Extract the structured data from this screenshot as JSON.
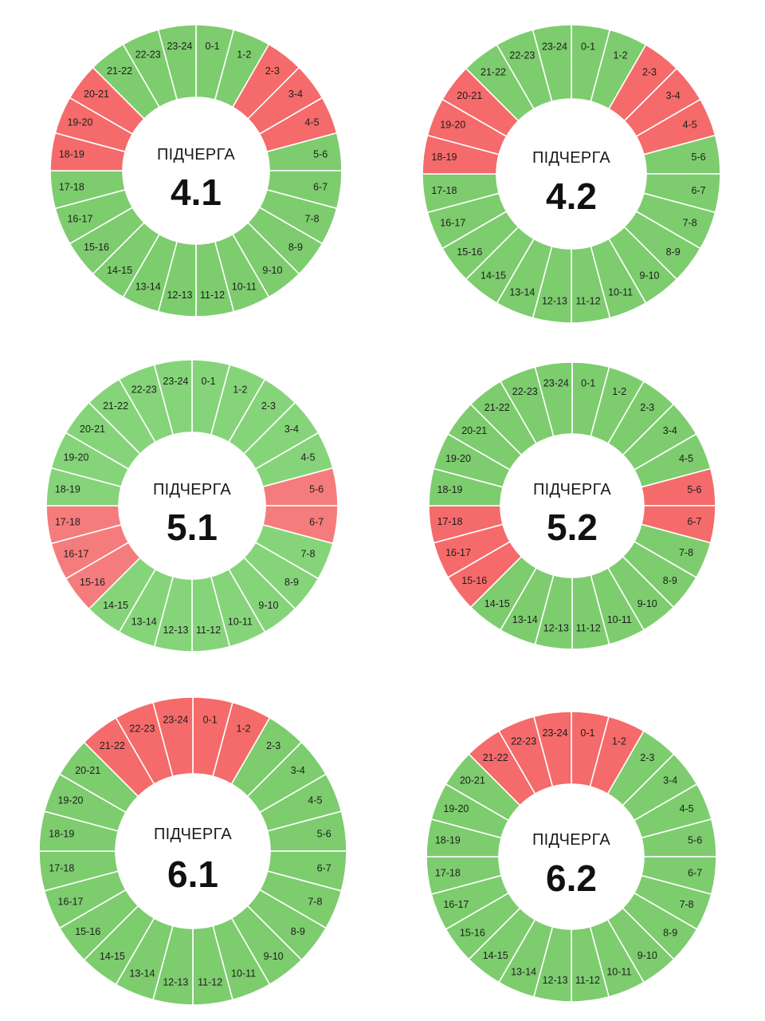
{
  "colors": {
    "on": "#7dcc6e",
    "on_light": "#86d47a",
    "off": "#f56a6a",
    "off_light": "#f57c7c",
    "separator": "#ffffff",
    "hole": "#ffffff"
  },
  "chart_data": [
    {
      "type": "pie",
      "caption": "ПІДЧЕРГА",
      "number": "4.1",
      "style": "normal",
      "categories": [
        "0-1",
        "1-2",
        "2-3",
        "3-4",
        "4-5",
        "5-6",
        "6-7",
        "7-8",
        "8-9",
        "9-10",
        "10-11",
        "11-12",
        "12-13",
        "13-14",
        "14-15",
        "15-16",
        "16-17",
        "17-18",
        "18-19",
        "19-20",
        "20-21",
        "21-22",
        "22-23",
        "23-24"
      ],
      "off_hours": [
        "2-3",
        "3-4",
        "4-5",
        "18-19",
        "19-20",
        "20-21"
      ]
    },
    {
      "type": "pie",
      "caption": "ПІДЧЕРГА",
      "number": "4.2",
      "style": "normal",
      "categories": [
        "0-1",
        "1-2",
        "2-3",
        "3-4",
        "4-5",
        "5-6",
        "6-7",
        "7-8",
        "8-9",
        "9-10",
        "10-11",
        "11-12",
        "12-13",
        "13-14",
        "14-15",
        "15-16",
        "16-17",
        "17-18",
        "18-19",
        "19-20",
        "20-21",
        "21-22",
        "22-23",
        "23-24"
      ],
      "off_hours": [
        "2-3",
        "3-4",
        "4-5",
        "18-19",
        "19-20",
        "20-21"
      ]
    },
    {
      "type": "pie",
      "caption": "ПІДЧЕРГА",
      "number": "5.1",
      "style": "light",
      "categories": [
        "0-1",
        "1-2",
        "2-3",
        "3-4",
        "4-5",
        "5-6",
        "6-7",
        "7-8",
        "8-9",
        "9-10",
        "10-11",
        "11-12",
        "12-13",
        "13-14",
        "14-15",
        "15-16",
        "16-17",
        "17-18",
        "18-19",
        "19-20",
        "20-21",
        "21-22",
        "22-23",
        "23-24"
      ],
      "off_hours": [
        "5-6",
        "6-7",
        "15-16",
        "16-17",
        "17-18"
      ]
    },
    {
      "type": "pie",
      "caption": "ПІДЧЕРГА",
      "number": "5.2",
      "style": "normal",
      "categories": [
        "0-1",
        "1-2",
        "2-3",
        "3-4",
        "4-5",
        "5-6",
        "6-7",
        "7-8",
        "8-9",
        "9-10",
        "10-11",
        "11-12",
        "12-13",
        "13-14",
        "14-15",
        "15-16",
        "16-17",
        "17-18",
        "18-19",
        "19-20",
        "20-21",
        "21-22",
        "22-23",
        "23-24"
      ],
      "off_hours": [
        "5-6",
        "6-7",
        "15-16",
        "16-17",
        "17-18"
      ]
    },
    {
      "type": "pie",
      "caption": "ПІДЧЕРГА",
      "number": "6.1",
      "style": "normal",
      "categories": [
        "0-1",
        "1-2",
        "2-3",
        "3-4",
        "4-5",
        "5-6",
        "6-7",
        "7-8",
        "8-9",
        "9-10",
        "10-11",
        "11-12",
        "12-13",
        "13-14",
        "14-15",
        "15-16",
        "16-17",
        "17-18",
        "18-19",
        "19-20",
        "20-21",
        "21-22",
        "22-23",
        "23-24"
      ],
      "off_hours": [
        "0-1",
        "1-2",
        "21-22",
        "22-23",
        "23-24"
      ]
    },
    {
      "type": "pie",
      "caption": "ПІДЧЕРГА",
      "number": "6.2",
      "style": "normal",
      "categories": [
        "0-1",
        "1-2",
        "2-3",
        "3-4",
        "4-5",
        "5-6",
        "6-7",
        "7-8",
        "8-9",
        "9-10",
        "10-11",
        "11-12",
        "12-13",
        "13-14",
        "14-15",
        "15-16",
        "16-17",
        "17-18",
        "18-19",
        "19-20",
        "20-21",
        "21-22",
        "22-23",
        "23-24"
      ],
      "off_hours": [
        "0-1",
        "1-2",
        "21-22",
        "22-23",
        "23-24"
      ]
    }
  ]
}
